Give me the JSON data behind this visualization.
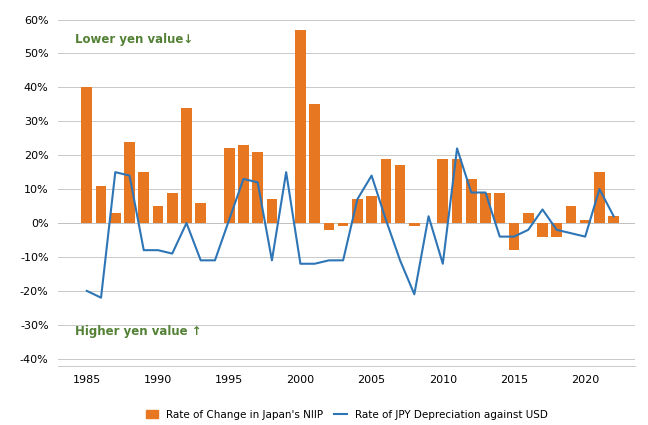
{
  "niip_years": [
    1985,
    1986,
    1987,
    1988,
    1989,
    1990,
    1991,
    1992,
    1993,
    1994,
    1995,
    1996,
    1997,
    1998,
    1999,
    2000,
    2001,
    2002,
    2003,
    2004,
    2005,
    2006,
    2007,
    2008,
    2009,
    2010,
    2011,
    2012,
    2013,
    2014,
    2015,
    2016,
    2017,
    2018,
    2019,
    2020,
    2021,
    2022
  ],
  "niip_vals": [
    40,
    11,
    3,
    24,
    15,
    5,
    9,
    34,
    6,
    0,
    22,
    23,
    21,
    7,
    0,
    57,
    35,
    -2,
    -1,
    7,
    8,
    19,
    17,
    -1,
    0,
    19,
    19,
    13,
    9,
    9,
    -8,
    3,
    -4,
    -4,
    5,
    1,
    15,
    2
  ],
  "jpy_years": [
    1985,
    1986,
    1987,
    1988,
    1989,
    1990,
    1991,
    1992,
    1993,
    1994,
    1995,
    1996,
    1997,
    1998,
    1999,
    2000,
    2001,
    2002,
    2003,
    2004,
    2005,
    2006,
    2007,
    2008,
    2009,
    2010,
    2011,
    2012,
    2013,
    2014,
    2015,
    2016,
    2017,
    2018,
    2019,
    2020,
    2021,
    2022
  ],
  "jpy_vals": [
    -20,
    -22,
    15,
    14,
    -8,
    -8,
    -9,
    0,
    -11,
    -11,
    1,
    13,
    12,
    -11,
    15,
    -12,
    -12,
    -11,
    -11,
    7,
    14,
    1,
    -11,
    -21,
    2,
    -12,
    22,
    9,
    9,
    -4,
    -4,
    -2,
    4,
    -2,
    -3,
    -4,
    10,
    2
  ],
  "bar_color": "#E87722",
  "line_color": "#2E75B6",
  "background_color": "#FFFFFF",
  "gridline_color": "#C0C0C0",
  "ylim": [
    -42,
    62
  ],
  "yticks": [
    -40,
    -30,
    -20,
    -10,
    0,
    10,
    20,
    30,
    40,
    50,
    60
  ],
  "ytick_labels": [
    "-40%",
    "-30%",
    "-20%",
    "-10%",
    "0%",
    "10%",
    "20%",
    "30%",
    "40%",
    "50%",
    "60%"
  ],
  "xticks": [
    1985,
    1990,
    1995,
    2000,
    2005,
    2010,
    2015,
    2020
  ],
  "xlim": [
    1983.0,
    2023.5
  ],
  "annotation_upper": "Lower yen value↓",
  "annotation_lower": "Higher yen value ↑",
  "annotation_color": "#538135",
  "legend_niip": "Rate of Change in Japan's NIIP",
  "legend_jpy": "Rate of JPY Depreciation against USD"
}
